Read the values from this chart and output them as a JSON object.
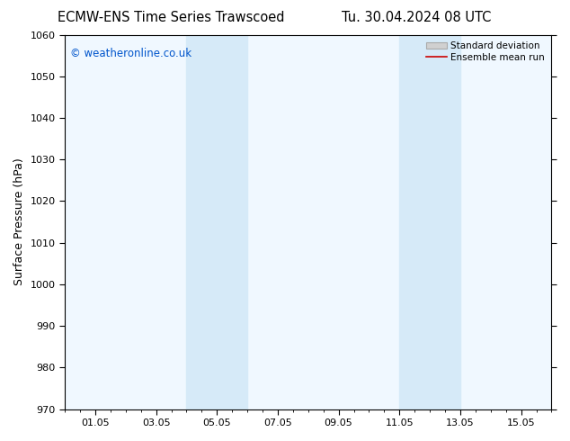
{
  "title_left": "ECMW-ENS Time Series Trawscoed",
  "title_right": "Tu. 30.04.2024 08 UTC",
  "ylabel": "Surface Pressure (hPa)",
  "ylim": [
    970,
    1060
  ],
  "yticks": [
    970,
    980,
    990,
    1000,
    1010,
    1020,
    1030,
    1040,
    1050,
    1060
  ],
  "xtick_labels": [
    "01.05",
    "03.05",
    "05.05",
    "07.05",
    "09.05",
    "11.05",
    "13.05",
    "15.05"
  ],
  "xtick_positions": [
    1,
    3,
    5,
    7,
    9,
    11,
    13,
    15
  ],
  "xlim": [
    0,
    16
  ],
  "shaded_bands": [
    {
      "x_start": 4.0,
      "x_end": 6.0,
      "color": "#d6eaf8"
    },
    {
      "x_start": 11.0,
      "x_end": 13.0,
      "color": "#d6eaf8"
    }
  ],
  "plot_bg_color": "#f0f8ff",
  "background_color": "#ffffff",
  "watermark_text": "© weatheronline.co.uk",
  "watermark_color": "#0055cc",
  "title_fontsize": 10.5,
  "axis_label_fontsize": 9,
  "tick_fontsize": 8,
  "legend_labels": [
    "Standard deviation",
    "Ensemble mean run"
  ],
  "std_dev_patch_color": "#d0d0d0",
  "ensemble_color": "#cc0000"
}
